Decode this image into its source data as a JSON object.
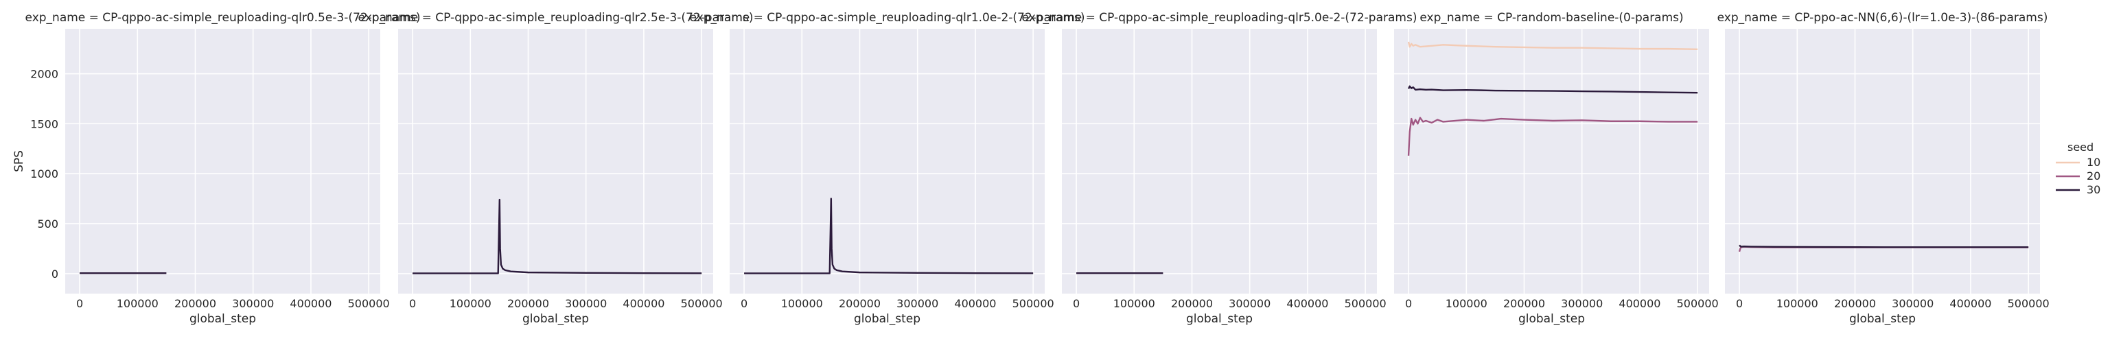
{
  "colors": {
    "panel_bg": "#eaeaf2",
    "grid": "#ffffff",
    "seed_10": "#f3cbb5",
    "seed_20": "#a05783",
    "seed_30": "#2b1a3b"
  },
  "legend": {
    "title": "seed",
    "entries": [
      {
        "label": "10",
        "color": "#f3cbb5"
      },
      {
        "label": "20",
        "color": "#a05783"
      },
      {
        "label": "30",
        "color": "#2b1a3b"
      }
    ]
  },
  "chart_data": {
    "type": "line",
    "ylabel": "SPS",
    "ylim": [
      -200,
      2450
    ],
    "xlim": [
      -25000,
      520000
    ],
    "grid": true,
    "legend_position": "right",
    "x_ticks": [
      0,
      100000,
      200000,
      300000,
      400000,
      500000
    ],
    "y_ticks": [
      0,
      500,
      1000,
      1500,
      2000
    ],
    "panels": [
      {
        "title": "exp_name = CP-qppo-ac-simple_reuploading-qlr0.5e-3-(72-params)",
        "xlabel": "global_step",
        "series": [
          {
            "name": "30",
            "x": [
              0,
              150000
            ],
            "y": [
              5,
              5
            ]
          }
        ]
      },
      {
        "title": "exp_name = CP-qppo-ac-simple_reuploading-qlr2.5e-3-(72-params)",
        "xlabel": "global_step",
        "series": [
          {
            "name": "30",
            "x": [
              0,
              148000,
              150500,
              151500,
              153000,
              156000,
              160000,
              170000,
              200000,
              300000,
              400000,
              500000
            ],
            "y": [
              3,
              3,
              740,
              250,
              90,
              50,
              35,
              22,
              12,
              7,
              5,
              4
            ]
          }
        ]
      },
      {
        "title": "exp_name = CP-qppo-ac-simple_reuploading-qlr1.0e-2-(72-params)",
        "xlabel": "global_step",
        "series": [
          {
            "name": "30",
            "x": [
              0,
              148000,
              150500,
              151500,
              153000,
              156000,
              160000,
              170000,
              200000,
              300000,
              400000,
              500000
            ],
            "y": [
              3,
              3,
              750,
              250,
              90,
              50,
              35,
              22,
              12,
              7,
              5,
              4
            ]
          }
        ]
      },
      {
        "title": "exp_name = CP-qppo-ac-simple_reuploading-qlr5.0e-2-(72-params)",
        "xlabel": "global_step",
        "series": [
          {
            "name": "30",
            "x": [
              0,
              150000
            ],
            "y": [
              5,
              5
            ]
          }
        ]
      },
      {
        "title": "exp_name = CP-random-baseline-(0-params)",
        "xlabel": "global_step",
        "series": [
          {
            "name": "10",
            "x": [
              0,
              2000,
              5000,
              8000,
              12000,
              20000,
              40000,
              60000,
              100000,
              150000,
              200000,
              250000,
              300000,
              350000,
              400000,
              450000,
              500000
            ],
            "y": [
              2320,
              2270,
              2300,
              2280,
              2290,
              2270,
              2280,
              2290,
              2280,
              2270,
              2265,
              2260,
              2260,
              2255,
              2250,
              2250,
              2245
            ]
          },
          {
            "name": "20",
            "x": [
              0,
              2000,
              5000,
              8000,
              12000,
              16000,
              20000,
              25000,
              30000,
              40000,
              50000,
              60000,
              80000,
              100000,
              130000,
              160000,
              200000,
              250000,
              300000,
              350000,
              400000,
              450000,
              500000
            ],
            "y": [
              1180,
              1420,
              1550,
              1490,
              1540,
              1500,
              1560,
              1520,
              1530,
              1510,
              1540,
              1520,
              1530,
              1540,
              1530,
              1550,
              1540,
              1530,
              1535,
              1525,
              1525,
              1520,
              1520
            ]
          },
          {
            "name": "30",
            "x": [
              0,
              2000,
              5000,
              8000,
              12000,
              20000,
              30000,
              40000,
              60000,
              100000,
              150000,
              200000,
              250000,
              300000,
              350000,
              400000,
              450000,
              500000
            ],
            "y": [
              1850,
              1875,
              1855,
              1865,
              1840,
              1845,
              1840,
              1842,
              1835,
              1838,
              1832,
              1830,
              1828,
              1825,
              1822,
              1818,
              1814,
              1810
            ]
          }
        ]
      },
      {
        "title": "exp_name = CP-ppo-ac-NN(6,6)-(lr=1.0e-3)-(86-params)",
        "xlabel": "global_step",
        "series": [
          {
            "name": "20",
            "x": [
              0,
              1500,
              3000,
              8000,
              20000,
              60000,
              150000,
              250000,
              350000,
              450000,
              500000
            ],
            "y": [
              220,
              250,
              265,
              268,
              266,
              262,
              262,
              262,
              262,
              262,
              262
            ]
          },
          {
            "name": "30",
            "x": [
              0,
              1500,
              3000,
              8000,
              20000,
              60000,
              150000,
              250000,
              350000,
              450000,
              500000
            ],
            "y": [
              285,
              275,
              270,
              272,
              270,
              268,
              266,
              265,
              265,
              265,
              265
            ]
          }
        ]
      }
    ]
  }
}
